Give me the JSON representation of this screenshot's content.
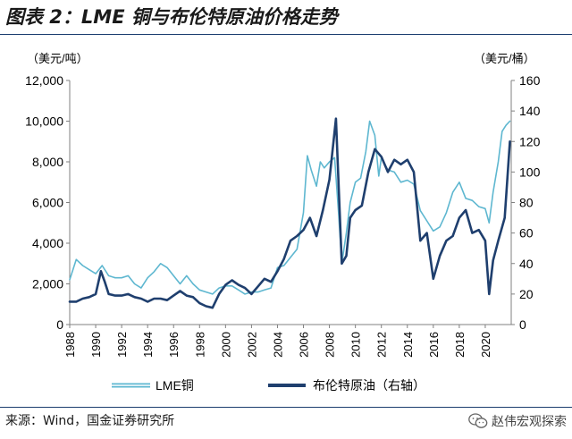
{
  "title": "图表 2：LME 铜与布伦特原油价格走势",
  "source": "来源：Wind，国金证券研究所",
  "watermark": "赵伟宏观探索",
  "watermark_icon": "wechat-icon",
  "colors": {
    "copper": "#5eb7d0",
    "brent": "#1f3f6e",
    "rule": "#1a3d6e"
  },
  "chart_data": {
    "type": "line",
    "left_axis_label": "（美元/吨）",
    "right_axis_label": "（美元/桶）",
    "left_ylim": [
      0,
      12000
    ],
    "left_ticks": [
      0,
      2000,
      4000,
      6000,
      8000,
      10000,
      12000
    ],
    "left_tick_labels": [
      "0",
      "2,000",
      "4,000",
      "6,000",
      "8,000",
      "10,000",
      "12,000"
    ],
    "right_ylim": [
      0,
      160
    ],
    "right_ticks": [
      0,
      20,
      40,
      60,
      80,
      100,
      120,
      140,
      160
    ],
    "right_tick_labels": [
      "0",
      "20",
      "40",
      "60",
      "80",
      "100",
      "120",
      "140",
      "160"
    ],
    "xlim": [
      1988,
      2022
    ],
    "x_ticks": [
      1988,
      1990,
      1992,
      1994,
      1996,
      1998,
      2000,
      2002,
      2004,
      2006,
      2008,
      2010,
      2012,
      2014,
      2016,
      2018,
      2020
    ],
    "x_tick_labels": [
      "1988",
      "1990",
      "1992",
      "1994",
      "1996",
      "1998",
      "2000",
      "2002",
      "2004",
      "2006",
      "2008",
      "2010",
      "2012",
      "2014",
      "2016",
      "2018",
      "2020"
    ],
    "grid": false,
    "legend_position": "bottom",
    "series": [
      {
        "name": "LME铜",
        "axis": "left",
        "x": [
          1988,
          1988.5,
          1989,
          1989.5,
          1990,
          1990.5,
          1991,
          1991.5,
          1992,
          1992.5,
          1993,
          1993.5,
          1994,
          1994.5,
          1995,
          1995.5,
          1996,
          1996.5,
          1997,
          1997.5,
          1998,
          1998.5,
          1999,
          1999.5,
          2000,
          2000.5,
          2001,
          2001.5,
          2002,
          2002.5,
          2003,
          2003.5,
          2004,
          2004.5,
          2005,
          2005.5,
          2006,
          2006.3,
          2006.6,
          2007,
          2007.3,
          2007.6,
          2008,
          2008.4,
          2008.7,
          2008.95,
          2009.3,
          2009.6,
          2010,
          2010.4,
          2010.8,
          2011.1,
          2011.5,
          2011.8,
          2012,
          2012.5,
          2013,
          2013.5,
          2014,
          2014.5,
          2015,
          2015.5,
          2016,
          2016.5,
          2017,
          2017.5,
          2018,
          2018.5,
          2019,
          2019.5,
          2020,
          2020.3,
          2020.6,
          2021,
          2021.3,
          2021.6,
          2021.9
        ],
        "y": [
          2200,
          3200,
          2900,
          2700,
          2500,
          2900,
          2400,
          2300,
          2300,
          2400,
          2000,
          1800,
          2300,
          2600,
          3000,
          2800,
          2400,
          2000,
          2400,
          2000,
          1700,
          1600,
          1500,
          1800,
          1900,
          1900,
          1700,
          1500,
          1600,
          1600,
          1700,
          1800,
          2800,
          2900,
          3300,
          3700,
          5500,
          8300,
          7600,
          6800,
          8000,
          7700,
          8000,
          8200,
          5500,
          3000,
          4500,
          6000,
          7000,
          7200,
          8500,
          10000,
          9300,
          7300,
          8200,
          7600,
          7500,
          7000,
          7100,
          6900,
          5600,
          5100,
          4600,
          4800,
          5500,
          6500,
          7000,
          6200,
          6100,
          5800,
          5700,
          5000,
          6500,
          8000,
          9500,
          9800,
          10000
        ]
      },
      {
        "name": "布伦特原油（右轴）",
        "axis": "right",
        "x": [
          1988,
          1988.5,
          1989,
          1989.5,
          1990,
          1990.4,
          1990.7,
          1991,
          1991.5,
          1992,
          1992.5,
          1993,
          1993.5,
          1994,
          1994.5,
          1995,
          1995.5,
          1996,
          1996.5,
          1997,
          1997.5,
          1998,
          1998.5,
          1999,
          1999.5,
          2000,
          2000.5,
          2001,
          2001.5,
          2002,
          2002.5,
          2003,
          2003.5,
          2004,
          2004.5,
          2005,
          2005.5,
          2006,
          2006.5,
          2007,
          2007.5,
          2008,
          2008.5,
          2008.95,
          2009.3,
          2009.6,
          2010,
          2010.5,
          2011,
          2011.5,
          2012,
          2012.5,
          2013,
          2013.5,
          2014,
          2014.5,
          2015,
          2015.5,
          2016,
          2016.5,
          2017,
          2017.5,
          2018,
          2018.5,
          2019,
          2019.5,
          2020,
          2020.3,
          2020.6,
          2021,
          2021.5,
          2021.9
        ],
        "y": [
          15,
          15,
          17,
          18,
          20,
          35,
          28,
          20,
          19,
          19,
          20,
          18,
          17,
          15,
          17,
          17,
          16,
          19,
          22,
          19,
          18,
          14,
          12,
          11,
          20,
          26,
          29,
          26,
          24,
          20,
          25,
          30,
          28,
          35,
          43,
          55,
          58,
          62,
          70,
          58,
          75,
          95,
          135,
          40,
          45,
          70,
          75,
          78,
          100,
          115,
          110,
          100,
          108,
          105,
          108,
          100,
          55,
          60,
          30,
          45,
          55,
          58,
          70,
          75,
          60,
          62,
          55,
          20,
          42,
          55,
          70,
          120
        ]
      }
    ]
  }
}
